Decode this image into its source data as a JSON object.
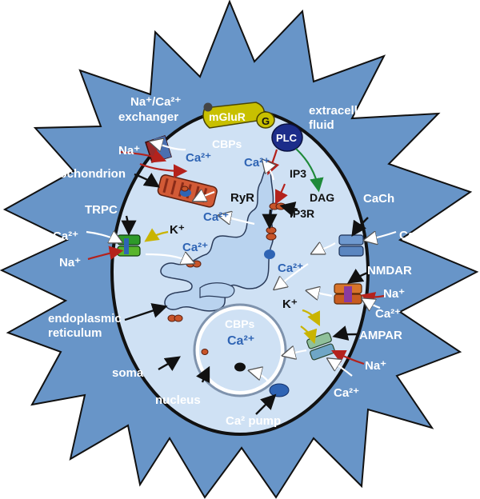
{
  "labels": {
    "nca_exchanger_line1": "Na⁺/Ca²⁺",
    "nca_exchanger_line2": "exchanger",
    "mglur": "mGluR",
    "g_protein": "G",
    "plc": "PLC",
    "extracellular_line1": "extracellular",
    "extracellular_line2": "fluid",
    "na_exchanger": "Na⁺",
    "ca_exchanger": "Ca²⁺",
    "cbps_top": "CBPs",
    "ca_top": "Ca²⁺",
    "ip3": "IP3",
    "dag": "DAG",
    "mitochondrion": "mitochondrion",
    "ryr": "RyR",
    "ip3r": "IP3R",
    "trpc": "TRPC",
    "ca_trpc": "Ca²⁺",
    "na_trpc": "Na⁺",
    "k_trpc": "K⁺",
    "ca_cyto_left": "Ca²⁺",
    "ca_cyto_mid": "Ca²⁺",
    "cach": "CaCh",
    "ca_cach": "Ca²⁺",
    "ca_right": "Ca²⁺",
    "nmdar": "NMDAR",
    "na_nmdar": "Na⁺",
    "ca_nmdar": "Ca²⁺",
    "k_nmdar": "K⁺",
    "er_line1": "endoplasmic",
    "er_line2": "reticulum",
    "cbps_nucleus": "CBPs",
    "ca_nucleus": "Ca²⁺",
    "ampar": "AMPAR",
    "na_ampar": "Na⁺",
    "ca_ampar": "Ca²⁺",
    "soma": "soma",
    "nucleus": "nucleus",
    "ca_pump": "Ca² pump"
  },
  "colors": {
    "extracellular": "#6895c8",
    "cytoplasm": "#cfe1f4",
    "mglur": "#c8c000",
    "plc": "#1c2d8a",
    "receptor_green": "#2e9a2a",
    "receptor_orange": "#d8742a",
    "receptor_blue": "#6f99cf",
    "ion_red": "#b4221c",
    "ca_text": "#2f64b4"
  }
}
